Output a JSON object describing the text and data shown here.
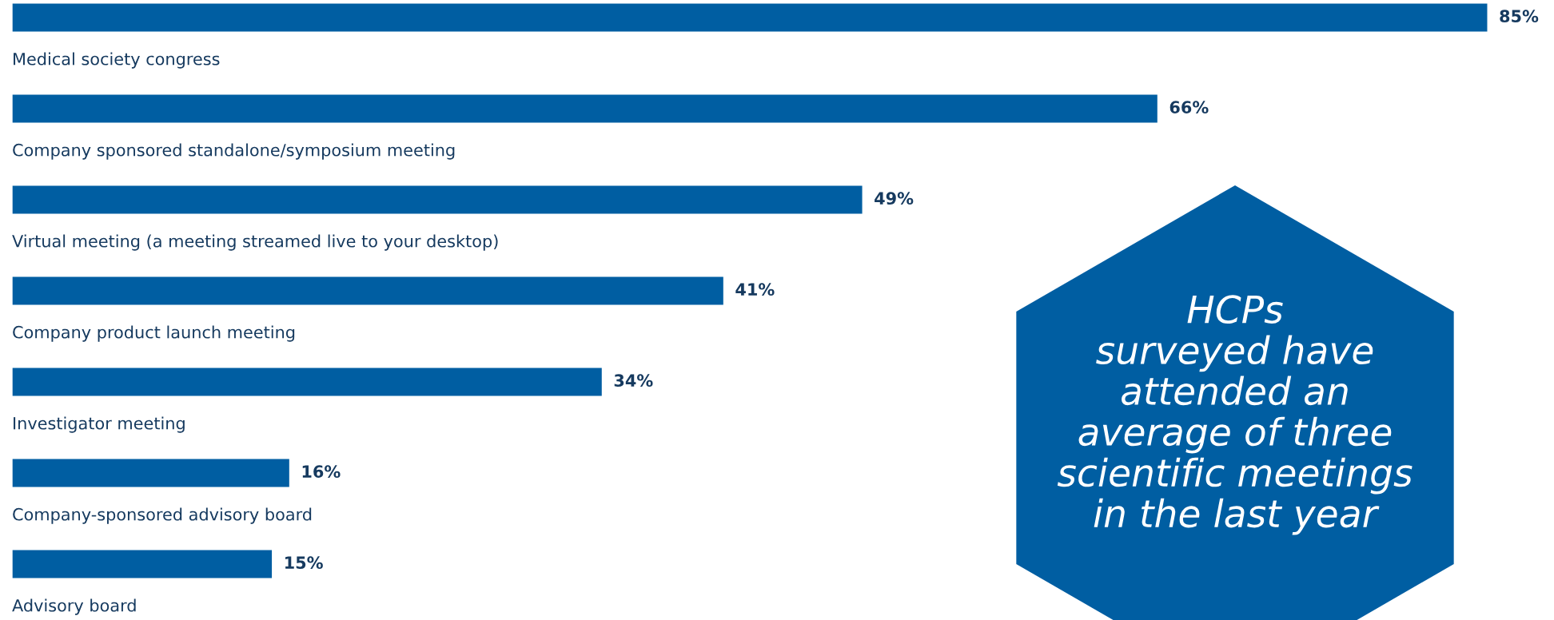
{
  "chart_data": {
    "type": "bar",
    "orientation": "horizontal",
    "categories": [
      "Medical society congress",
      "Company sponsored standalone/symposium meeting",
      "Virtual meeting (a meeting streamed live to your desktop)",
      "Company product launch meeting",
      "Investigator meeting",
      "Company-sponsored advisory board",
      "Advisory board"
    ],
    "values": [
      85,
      66,
      49,
      41,
      34,
      16,
      15
    ],
    "value_labels": [
      "85%",
      "66%",
      "49%",
      "41%",
      "34%",
      "16%",
      "15%"
    ],
    "color": "#005ea2",
    "annotations": [
      "HCPs\nsurveyed have\nattended an\naverage of three\nscientific meetings\nin the last year"
    ]
  }
}
